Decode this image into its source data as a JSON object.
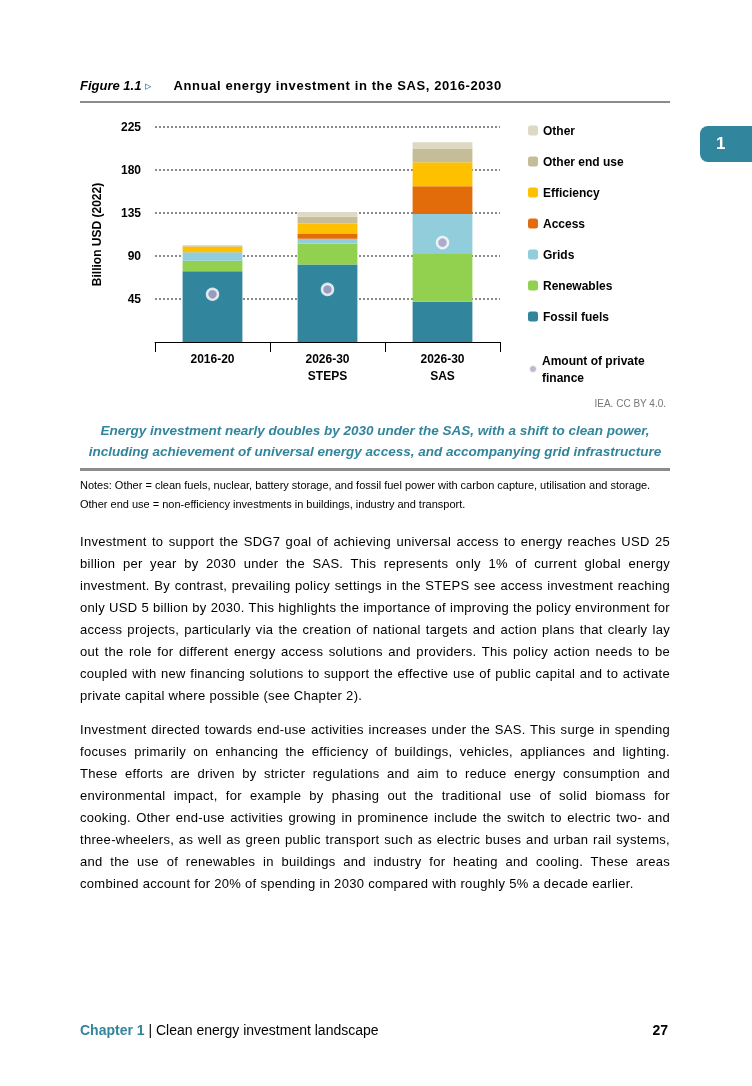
{
  "chart_data": {
    "type": "bar",
    "title": "Figure 1.1 ▹ Annual energy investment in the SAS, 2016-2030",
    "subtitle": "Energy investment nearly doubles by 2030 under the SAS, with a shift to clean power, including achievement of universal energy access, and accompanying grid infrastructure",
    "ylabel": "Billion USD (2022)",
    "categories": [
      "2016-20",
      "2026-30\nSTEPS",
      "2026-30\nSAS"
    ],
    "stacked": true,
    "series": [
      {
        "name": "Fossil fuels",
        "color": "#31859c",
        "values": [
          74,
          81,
          42
        ]
      },
      {
        "name": "Renewables",
        "color": "#92d050",
        "values": [
          11,
          22,
          50
        ]
      },
      {
        "name": "Grids",
        "color": "#92cddc",
        "values": [
          9,
          5,
          42
        ]
      },
      {
        "name": "Access",
        "color": "#e36c0a",
        "values": [
          0,
          5,
          29
        ]
      },
      {
        "name": "Efficiency",
        "color": "#ffc000",
        "values": [
          6,
          11,
          25
        ]
      },
      {
        "name": "Other end use",
        "color": "#c4bd97",
        "values": [
          1,
          7,
          14
        ]
      },
      {
        "name": "Other",
        "color": "#ddd9c3",
        "values": [
          0,
          5,
          7
        ]
      },
      {
        "name": "Amount of private finance",
        "type": "scatter",
        "color": "#b3a2c7",
        "x": [
          "2016-20",
          "2026-30\nSTEPS",
          "2026-30\nSAS"
        ],
        "values": [
          50,
          55,
          104
        ]
      }
    ],
    "ylim": [
      0,
      225
    ],
    "yticks": [
      45,
      90,
      135,
      180,
      225
    ],
    "grid": "y",
    "legend": "right",
    "marker": "circle",
    "annotations": [
      "IEA. CC BY 4.0.",
      "Notes: Other = clean fuels, nuclear, battery storage, and fossil fuel power with carbon capture, utilisation and storage. Other end use = non-efficiency investments in buildings, industry and transport.",
      "Investment to support the SDG7 goal of achieving universal access to energy reaches USD 25 billion per year by 2030 under the SAS. This represents only 1% of current global energy investment. By contrast, prevailing policy settings in the STEPS see access investment reaching only USD 5 billion by 2030. This highlights the importance of improving the policy environment for access projects, particularly via the creation of national targets and action plans that clearly lay out the role for different energy access solutions and providers. This policy action needs to be coupled with new financing solutions to support the effective use of public capital and to activate private capital where possible (see Chapter 2).",
      "Investment directed towards end-use activities increases under the SAS. This surge in spending focuses primarily on enhancing the efficiency of buildings, vehicles, appliances and lighting. These efforts are driven by stricter regulations and aim to reduce energy consumption and environmental impact, for example by phasing out the traditional use of solid biomass for cooking. Other end-use activities growing in prominence include the switch to electric two- and three-wheelers, as well as green public transport such as electric buses and urban rail systems, and the use of renewables in buildings and industry for heating and cooling. These areas combined account for 20% of spending in 2030 compared with roughly 5% a decade earlier.",
      "Chapter 1  |  Clean energy investment landscape",
      "27",
      "1"
    ]
  }
}
